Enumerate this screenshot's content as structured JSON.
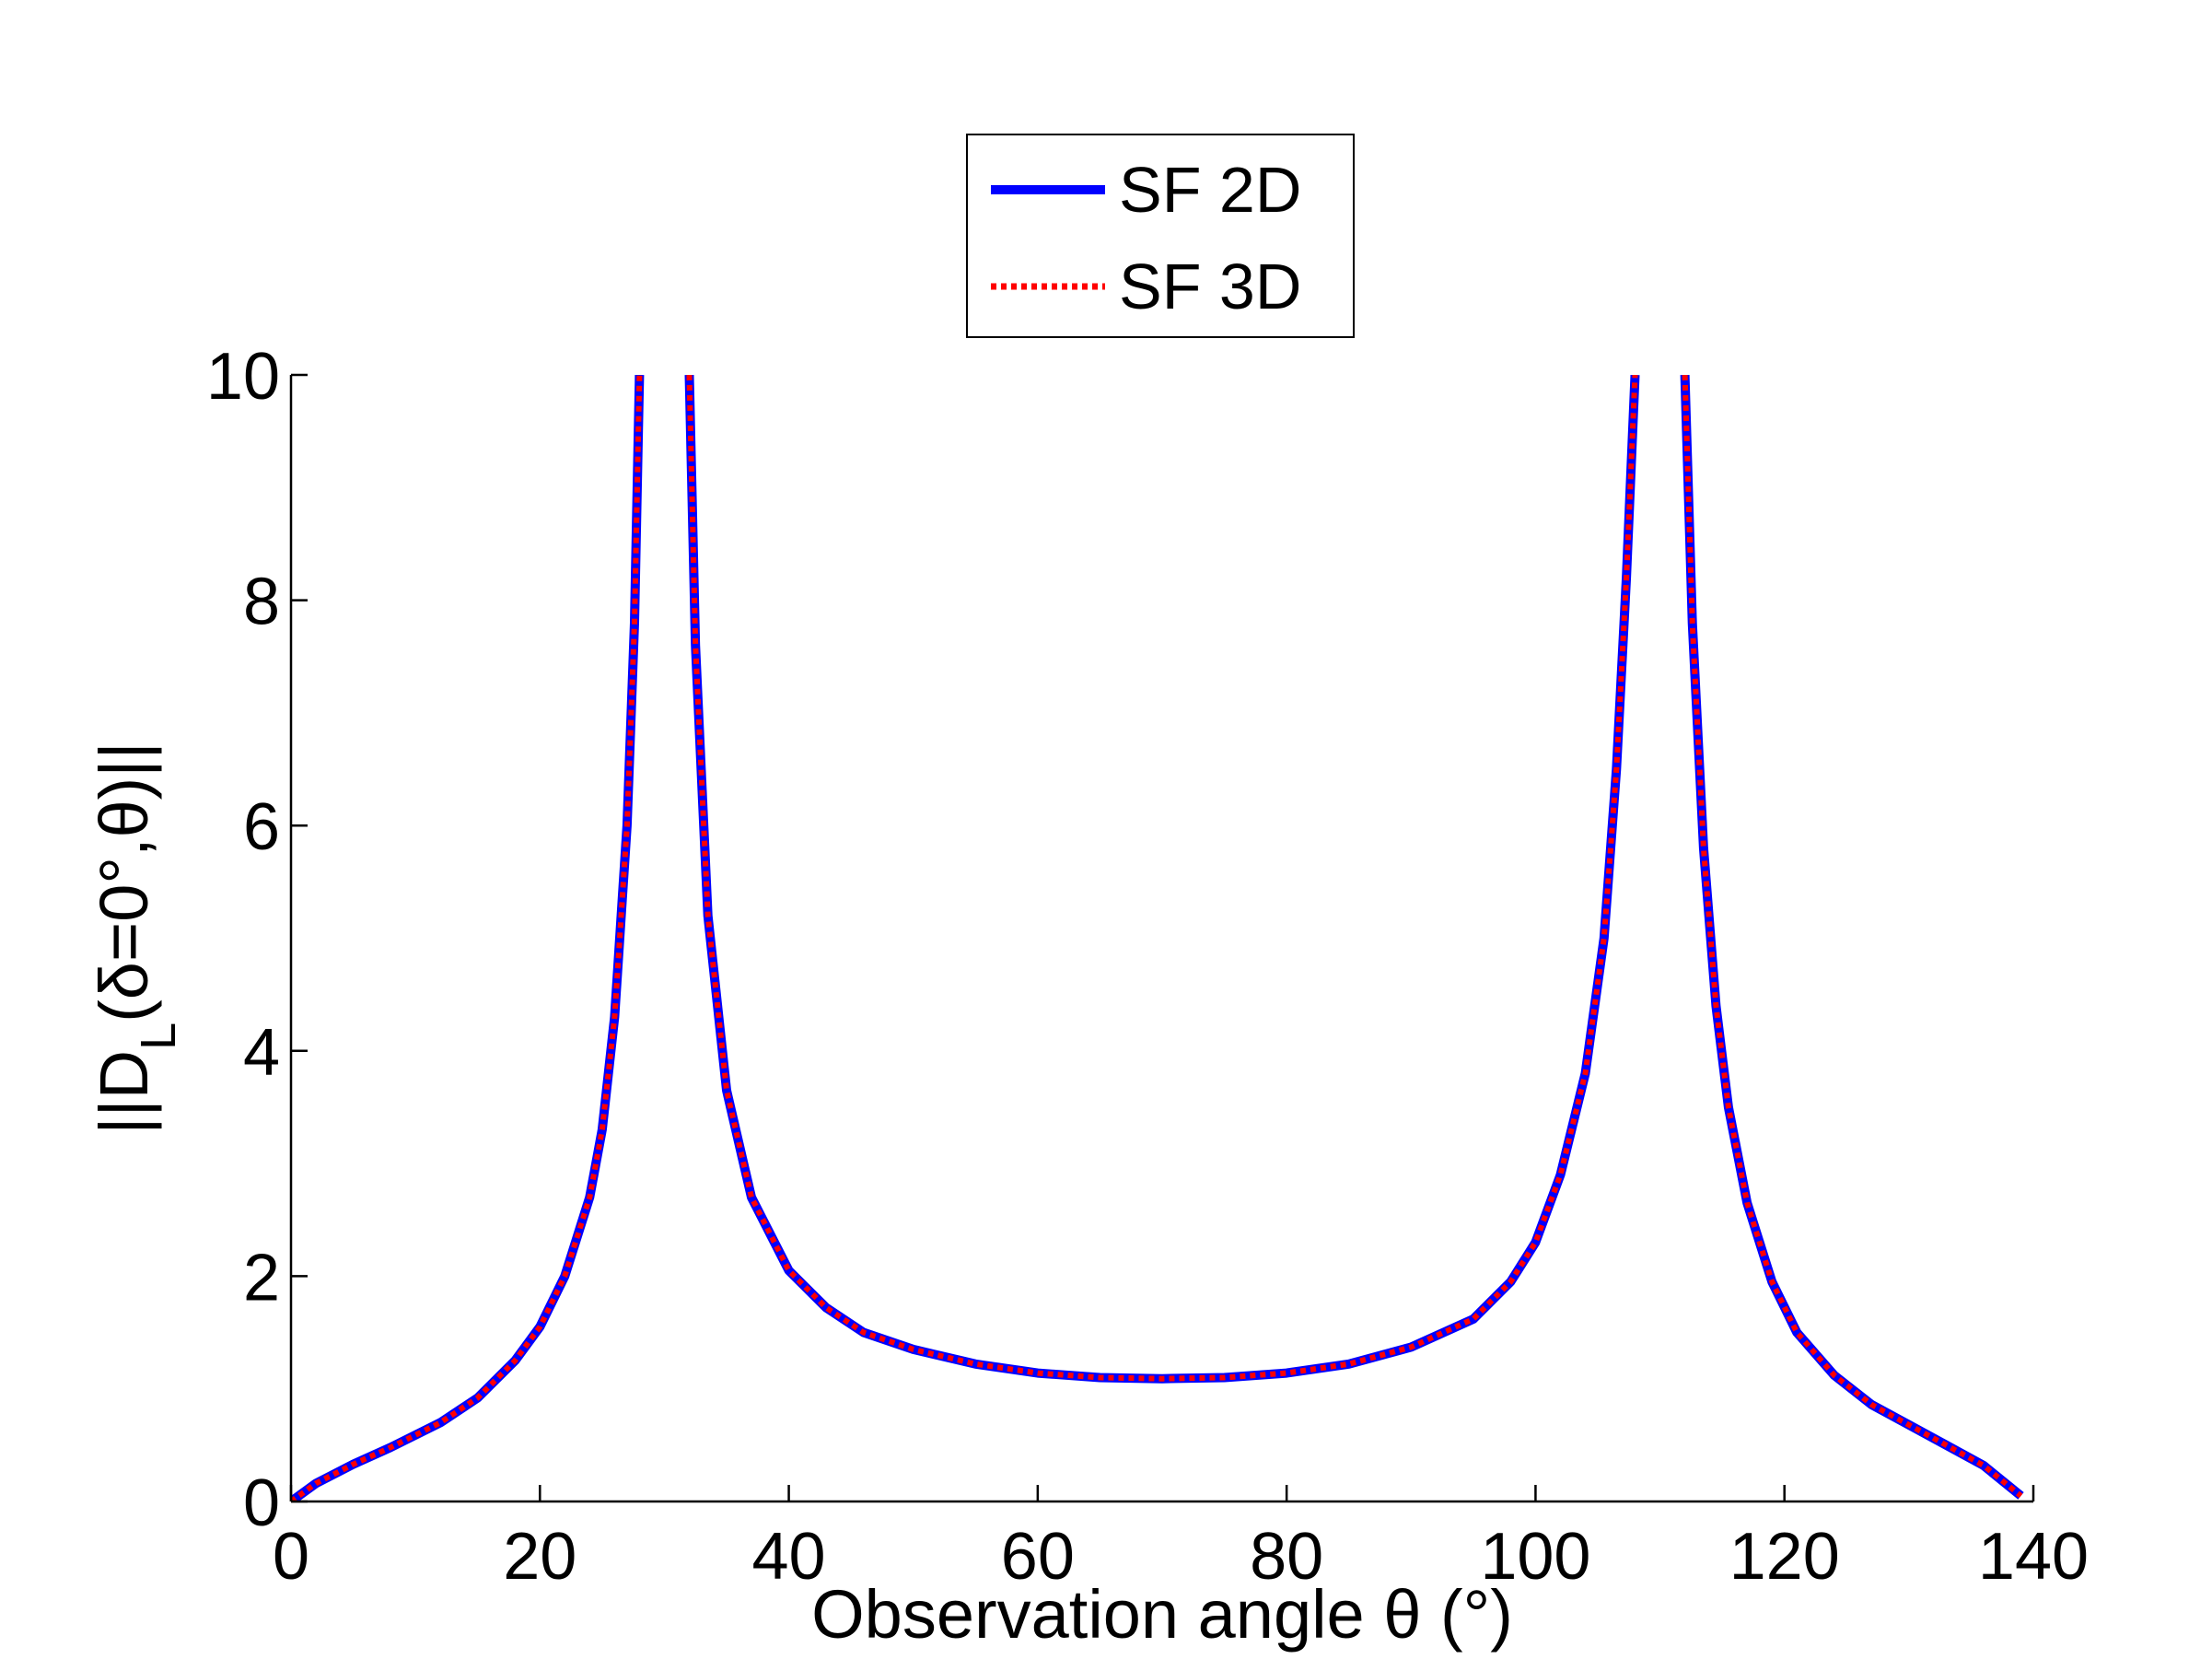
{
  "chart_data": {
    "type": "line",
    "xlabel": "Observation angle θ (°)",
    "ylabel": {
      "prefix": "||D",
      "subscript": "L",
      "suffix": "(δ=0°,θ)||"
    },
    "xlim": [
      0,
      140
    ],
    "ylim": [
      0,
      10
    ],
    "xticks": [
      0,
      20,
      40,
      60,
      80,
      100,
      120,
      140
    ],
    "yticks": [
      0,
      2,
      4,
      6,
      8,
      10
    ],
    "grid": false,
    "legend": "top-center",
    "series": [
      {
        "name": "SF 2D",
        "color": "#0000ff",
        "style": "solid",
        "segments": [
          [
            [
              0,
              0
            ],
            [
              2,
              0.16
            ],
            [
              5,
              0.33
            ],
            [
              8,
              0.48
            ],
            [
              12,
              0.7
            ],
            [
              15,
              0.92
            ],
            [
              18,
              1.25
            ],
            [
              20,
              1.55
            ],
            [
              22,
              2.0
            ],
            [
              24,
              2.7
            ],
            [
              25,
              3.3
            ],
            [
              26,
              4.3
            ],
            [
              27,
              6.0
            ],
            [
              27.6,
              7.8
            ],
            [
              28,
              10
            ]
          ],
          [
            [
              32,
              10
            ],
            [
              32.5,
              7.6
            ],
            [
              33.5,
              5.2
            ],
            [
              35,
              3.65
            ],
            [
              37,
              2.7
            ],
            [
              40,
              2.05
            ],
            [
              43,
              1.72
            ],
            [
              46,
              1.5
            ],
            [
              50,
              1.35
            ],
            [
              55,
              1.22
            ],
            [
              60,
              1.14
            ],
            [
              65,
              1.1
            ],
            [
              70,
              1.09
            ],
            [
              75,
              1.1
            ],
            [
              80,
              1.14
            ],
            [
              85,
              1.22
            ],
            [
              90,
              1.37
            ],
            [
              95,
              1.62
            ],
            [
              98,
              1.95
            ],
            [
              100,
              2.3
            ],
            [
              102,
              2.9
            ],
            [
              104,
              3.8
            ],
            [
              105.5,
              5.0
            ],
            [
              106.5,
              6.5
            ],
            [
              107.3,
              8.2
            ],
            [
              108,
              10
            ]
          ],
          [
            [
              112,
              10
            ],
            [
              112.6,
              7.8
            ],
            [
              113.5,
              5.8
            ],
            [
              114.5,
              4.4
            ],
            [
              115.5,
              3.5
            ],
            [
              117,
              2.65
            ],
            [
              119,
              1.95
            ],
            [
              121,
              1.5
            ],
            [
              124,
              1.12
            ],
            [
              127,
              0.86
            ],
            [
              130,
              0.68
            ],
            [
              133,
              0.5
            ],
            [
              136,
              0.32
            ],
            [
              139,
              0.05
            ]
          ]
        ]
      },
      {
        "name": "SF 3D",
        "color": "#ff0000",
        "style": "dotted",
        "segments": [
          [
            [
              0,
              0
            ],
            [
              2,
              0.16
            ],
            [
              5,
              0.33
            ],
            [
              8,
              0.48
            ],
            [
              12,
              0.7
            ],
            [
              15,
              0.92
            ],
            [
              18,
              1.25
            ],
            [
              20,
              1.55
            ],
            [
              22,
              2.0
            ],
            [
              24,
              2.7
            ],
            [
              25,
              3.3
            ],
            [
              26,
              4.3
            ],
            [
              27,
              6.0
            ],
            [
              27.6,
              7.8
            ],
            [
              28,
              10
            ]
          ],
          [
            [
              32,
              10
            ],
            [
              32.5,
              7.6
            ],
            [
              33.5,
              5.2
            ],
            [
              35,
              3.65
            ],
            [
              37,
              2.7
            ],
            [
              40,
              2.05
            ],
            [
              43,
              1.72
            ],
            [
              46,
              1.5
            ],
            [
              50,
              1.35
            ],
            [
              55,
              1.22
            ],
            [
              60,
              1.14
            ],
            [
              65,
              1.1
            ],
            [
              70,
              1.09
            ],
            [
              75,
              1.1
            ],
            [
              80,
              1.14
            ],
            [
              85,
              1.22
            ],
            [
              90,
              1.37
            ],
            [
              95,
              1.62
            ],
            [
              98,
              1.95
            ],
            [
              100,
              2.3
            ],
            [
              102,
              2.9
            ],
            [
              104,
              3.8
            ],
            [
              105.5,
              5.0
            ],
            [
              106.5,
              6.5
            ],
            [
              107.3,
              8.2
            ],
            [
              108,
              10
            ]
          ],
          [
            [
              112,
              10
            ],
            [
              112.6,
              7.8
            ],
            [
              113.5,
              5.8
            ],
            [
              114.5,
              4.4
            ],
            [
              115.5,
              3.5
            ],
            [
              117,
              2.65
            ],
            [
              119,
              1.95
            ],
            [
              121,
              1.5
            ],
            [
              124,
              1.12
            ],
            [
              127,
              0.86
            ],
            [
              130,
              0.68
            ],
            [
              133,
              0.5
            ],
            [
              136,
              0.32
            ],
            [
              139,
              0.05
            ]
          ]
        ]
      }
    ]
  }
}
